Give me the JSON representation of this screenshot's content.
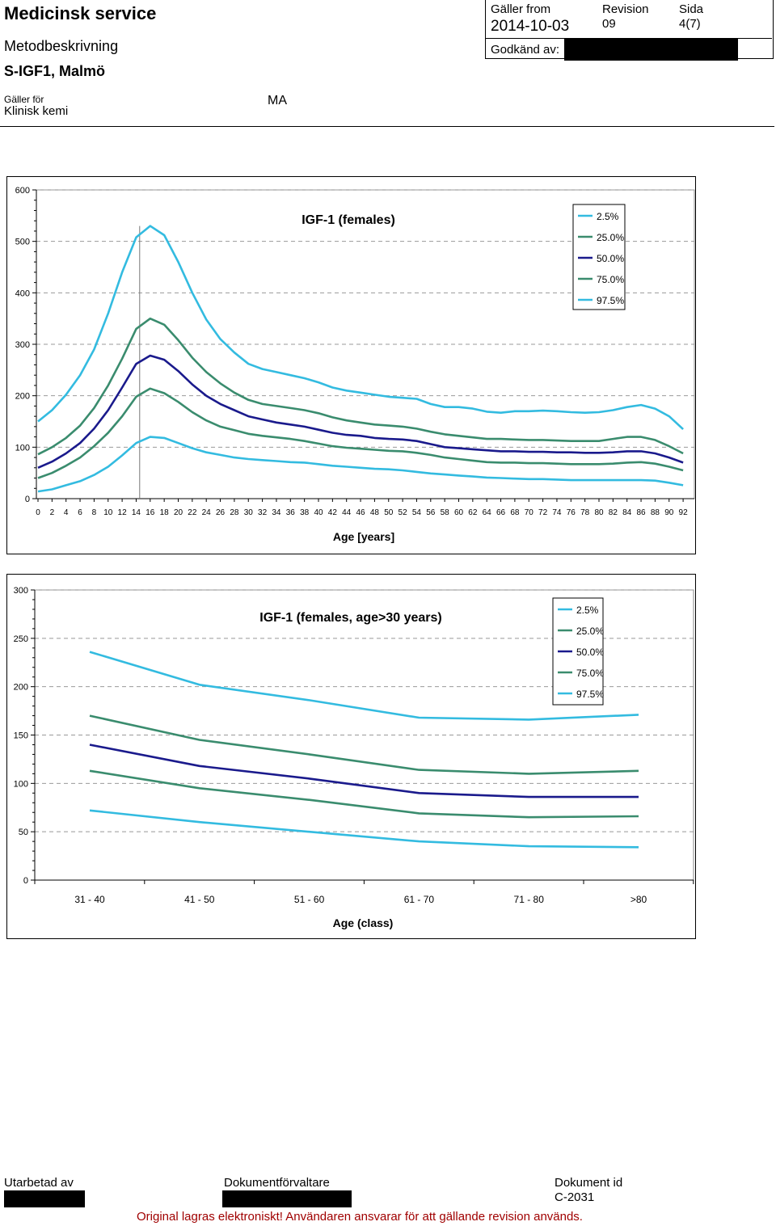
{
  "header": {
    "org": "Medicinsk service",
    "doc_type": "Metodbeskrivning",
    "doc_name": "S-IGF1, Malmö",
    "applies_label": "Gäller för",
    "applies_value": "Klinisk kemi",
    "unit": "MA",
    "valid_from_label": "Gäller from",
    "valid_from_value": "2014-10-03",
    "revision_label": "Revision",
    "revision_value": "09",
    "page_label": "Sida",
    "page_value": "4(7)",
    "approved_label": "Godkänd av:"
  },
  "footer": {
    "prepared_label": "Utarbetad av",
    "manager_label": "Dokumentförvaltare",
    "doc_id_label": "Dokument id",
    "doc_id_value": "C-2031",
    "note": "Original lagras elektroniskt! Användaren ansvarar för att gällande revision används."
  },
  "chart_data": [
    {
      "type": "line",
      "title": "IGF-1 (females)",
      "xlabel": "Age [years]",
      "ylabel": "",
      "ylim": [
        0,
        600
      ],
      "yticks": [
        0,
        100,
        200,
        300,
        400,
        500,
        600
      ],
      "x": [
        0,
        2,
        4,
        6,
        8,
        10,
        12,
        14,
        16,
        18,
        20,
        22,
        24,
        26,
        28,
        30,
        32,
        34,
        36,
        38,
        40,
        42,
        44,
        46,
        48,
        50,
        52,
        54,
        56,
        58,
        60,
        62,
        64,
        66,
        68,
        70,
        72,
        74,
        76,
        78,
        80,
        82,
        84,
        86,
        88,
        90,
        92
      ],
      "xtick_labels": [
        "0",
        "2",
        "4",
        "6",
        "8",
        "10",
        "12",
        "14",
        "16",
        "18",
        "20",
        "22",
        "24",
        "26",
        "28",
        "30",
        "32",
        "34",
        "36",
        "38",
        "40",
        "42",
        "44",
        "46",
        "48",
        "50",
        "52",
        "54",
        "56",
        "58",
        "60",
        "62",
        "64",
        "66",
        "68",
        "70",
        "72",
        "74",
        "76",
        "78",
        "80",
        "82",
        "84",
        "86",
        "88",
        "90",
        "92"
      ],
      "grid": true,
      "legend_position": "top-right",
      "annotation": "vertical line at age 14.5",
      "series": [
        {
          "name": "2.5%",
          "color": "#33bbe0",
          "values": [
            14,
            18,
            26,
            34,
            46,
            62,
            84,
            108,
            120,
            118,
            108,
            98,
            90,
            85,
            80,
            77,
            75,
            73,
            71,
            70,
            67,
            64,
            62,
            60,
            58,
            57,
            55,
            52,
            49,
            47,
            45,
            43,
            41,
            40,
            39,
            38,
            38,
            37,
            36,
            36,
            36,
            36,
            36,
            36,
            35,
            31,
            26
          ]
        },
        {
          "name": "25.0%",
          "color": "#3a8c6e",
          "values": [
            40,
            50,
            64,
            80,
            102,
            128,
            160,
            198,
            214,
            205,
            188,
            168,
            152,
            140,
            133,
            126,
            122,
            119,
            116,
            112,
            107,
            102,
            99,
            97,
            95,
            93,
            92,
            89,
            85,
            80,
            77,
            74,
            71,
            70,
            70,
            69,
            69,
            68,
            67,
            67,
            67,
            68,
            70,
            71,
            68,
            62,
            55
          ]
        },
        {
          "name": "50.0%",
          "color": "#1a1a8c",
          "values": [
            60,
            72,
            88,
            108,
            136,
            172,
            216,
            262,
            278,
            270,
            248,
            222,
            200,
            184,
            172,
            160,
            154,
            148,
            144,
            140,
            134,
            128,
            124,
            122,
            118,
            116,
            115,
            112,
            106,
            100,
            98,
            96,
            94,
            92,
            92,
            91,
            91,
            90,
            90,
            89,
            89,
            90,
            92,
            92,
            88,
            80,
            70
          ]
        },
        {
          "name": "75.0%",
          "color": "#3a8c6e",
          "values": [
            86,
            100,
            118,
            142,
            176,
            220,
            272,
            330,
            350,
            338,
            308,
            274,
            246,
            224,
            206,
            192,
            184,
            180,
            176,
            172,
            166,
            158,
            152,
            148,
            144,
            142,
            140,
            136,
            130,
            125,
            122,
            119,
            116,
            116,
            115,
            114,
            114,
            113,
            112,
            112,
            112,
            116,
            120,
            120,
            114,
            102,
            88
          ]
        },
        {
          "name": "97.5%",
          "color": "#33bbe0",
          "values": [
            150,
            172,
            202,
            240,
            290,
            360,
            440,
            508,
            530,
            512,
            460,
            400,
            348,
            310,
            284,
            262,
            252,
            246,
            240,
            234,
            226,
            216,
            210,
            206,
            202,
            198,
            196,
            194,
            184,
            178,
            178,
            175,
            169,
            167,
            170,
            170,
            171,
            170,
            168,
            167,
            168,
            172,
            178,
            182,
            175,
            160,
            135
          ]
        }
      ]
    },
    {
      "type": "line",
      "title": "IGF-1 (females, age>30 years)",
      "xlabel": "Age (class)",
      "ylabel": "",
      "ylim": [
        0,
        300
      ],
      "yticks": [
        0,
        50,
        100,
        150,
        200,
        250,
        300
      ],
      "categories": [
        "31 - 40",
        "41 - 50",
        "51 - 60",
        "61 - 70",
        "71 - 80",
        ">80"
      ],
      "grid": true,
      "legend_position": "top-right",
      "series": [
        {
          "name": "2.5%",
          "color": "#33bbe0",
          "values": [
            72,
            60,
            50,
            40,
            35,
            34
          ]
        },
        {
          "name": "25.0%",
          "color": "#3a8c6e",
          "values": [
            113,
            95,
            83,
            69,
            65,
            66
          ]
        },
        {
          "name": "50.0%",
          "color": "#1a1a8c",
          "values": [
            140,
            118,
            105,
            90,
            86,
            86
          ]
        },
        {
          "name": "75.0%",
          "color": "#3a8c6e",
          "values": [
            170,
            145,
            130,
            114,
            110,
            113
          ]
        },
        {
          "name": "97.5%",
          "color": "#33bbe0",
          "values": [
            236,
            202,
            186,
            168,
            166,
            171
          ]
        }
      ]
    }
  ]
}
